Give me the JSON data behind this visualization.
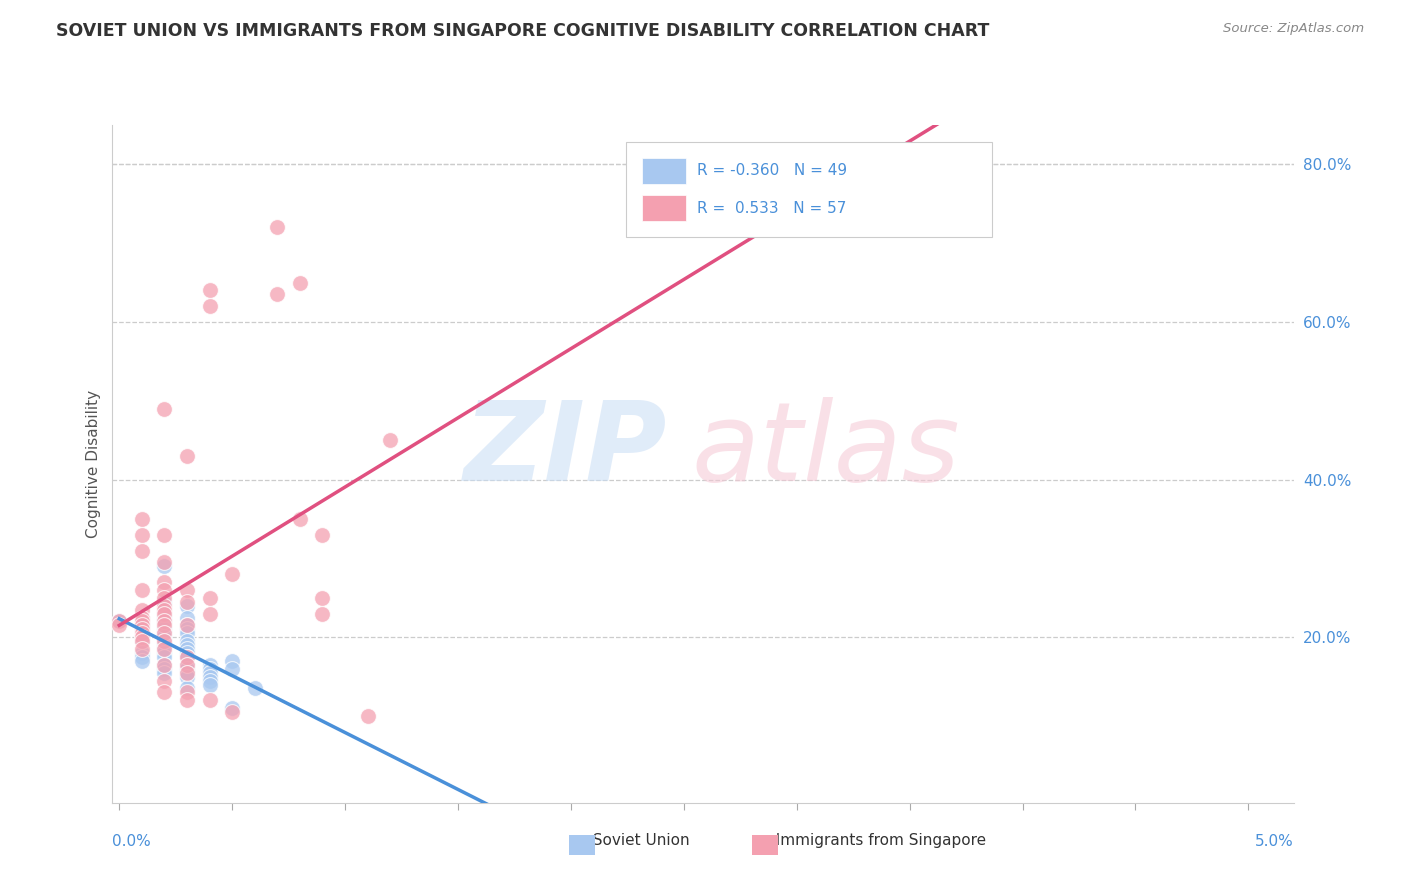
{
  "title": "SOVIET UNION VS IMMIGRANTS FROM SINGAPORE COGNITIVE DISABILITY CORRELATION CHART",
  "source": "Source: ZipAtlas.com",
  "ylabel": "Cognitive Disability",
  "ylabel_right_vals": [
    0.8,
    0.6,
    0.4,
    0.2
  ],
  "x_min": 0.0,
  "x_max": 0.05,
  "y_min": 0.0,
  "y_max": 0.85,
  "color_soviet": "#a8c8f0",
  "color_singapore": "#f4a0b0",
  "trendline_soviet_color": "#4a90d9",
  "trendline_singapore_color": "#e05080",
  "soviet_scatter": [
    [
      0.0,
      0.22
    ],
    [
      0.001,
      0.215
    ],
    [
      0.001,
      0.2
    ],
    [
      0.001,
      0.195
    ],
    [
      0.001,
      0.18
    ],
    [
      0.001,
      0.175
    ],
    [
      0.001,
      0.17
    ],
    [
      0.002,
      0.29
    ],
    [
      0.002,
      0.245
    ],
    [
      0.002,
      0.23
    ],
    [
      0.002,
      0.225
    ],
    [
      0.002,
      0.22
    ],
    [
      0.002,
      0.215
    ],
    [
      0.002,
      0.21
    ],
    [
      0.002,
      0.205
    ],
    [
      0.002,
      0.2
    ],
    [
      0.002,
      0.195
    ],
    [
      0.002,
      0.19
    ],
    [
      0.002,
      0.185
    ],
    [
      0.002,
      0.18
    ],
    [
      0.002,
      0.175
    ],
    [
      0.002,
      0.165
    ],
    [
      0.002,
      0.16
    ],
    [
      0.002,
      0.155
    ],
    [
      0.003,
      0.24
    ],
    [
      0.003,
      0.225
    ],
    [
      0.003,
      0.215
    ],
    [
      0.003,
      0.21
    ],
    [
      0.003,
      0.205
    ],
    [
      0.003,
      0.195
    ],
    [
      0.003,
      0.19
    ],
    [
      0.003,
      0.185
    ],
    [
      0.003,
      0.18
    ],
    [
      0.003,
      0.175
    ],
    [
      0.003,
      0.165
    ],
    [
      0.003,
      0.16
    ],
    [
      0.003,
      0.155
    ],
    [
      0.003,
      0.15
    ],
    [
      0.003,
      0.135
    ],
    [
      0.004,
      0.165
    ],
    [
      0.004,
      0.16
    ],
    [
      0.004,
      0.155
    ],
    [
      0.004,
      0.15
    ],
    [
      0.004,
      0.145
    ],
    [
      0.004,
      0.14
    ],
    [
      0.005,
      0.17
    ],
    [
      0.005,
      0.16
    ],
    [
      0.005,
      0.11
    ],
    [
      0.006,
      0.135
    ]
  ],
  "singapore_scatter": [
    [
      0.0,
      0.22
    ],
    [
      0.0,
      0.215
    ],
    [
      0.001,
      0.35
    ],
    [
      0.001,
      0.33
    ],
    [
      0.001,
      0.31
    ],
    [
      0.001,
      0.26
    ],
    [
      0.001,
      0.235
    ],
    [
      0.001,
      0.225
    ],
    [
      0.001,
      0.22
    ],
    [
      0.001,
      0.215
    ],
    [
      0.001,
      0.21
    ],
    [
      0.001,
      0.205
    ],
    [
      0.001,
      0.2
    ],
    [
      0.001,
      0.195
    ],
    [
      0.001,
      0.185
    ],
    [
      0.002,
      0.49
    ],
    [
      0.002,
      0.33
    ],
    [
      0.002,
      0.295
    ],
    [
      0.002,
      0.27
    ],
    [
      0.002,
      0.26
    ],
    [
      0.002,
      0.25
    ],
    [
      0.002,
      0.24
    ],
    [
      0.002,
      0.235
    ],
    [
      0.002,
      0.23
    ],
    [
      0.002,
      0.22
    ],
    [
      0.002,
      0.215
    ],
    [
      0.002,
      0.205
    ],
    [
      0.002,
      0.195
    ],
    [
      0.002,
      0.185
    ],
    [
      0.002,
      0.165
    ],
    [
      0.002,
      0.145
    ],
    [
      0.002,
      0.13
    ],
    [
      0.003,
      0.43
    ],
    [
      0.003,
      0.26
    ],
    [
      0.003,
      0.245
    ],
    [
      0.003,
      0.215
    ],
    [
      0.003,
      0.175
    ],
    [
      0.003,
      0.165
    ],
    [
      0.003,
      0.155
    ],
    [
      0.003,
      0.13
    ],
    [
      0.003,
      0.12
    ],
    [
      0.004,
      0.64
    ],
    [
      0.004,
      0.62
    ],
    [
      0.004,
      0.25
    ],
    [
      0.004,
      0.23
    ],
    [
      0.004,
      0.12
    ],
    [
      0.005,
      0.28
    ],
    [
      0.005,
      0.105
    ],
    [
      0.007,
      0.72
    ],
    [
      0.007,
      0.635
    ],
    [
      0.008,
      0.65
    ],
    [
      0.008,
      0.35
    ],
    [
      0.009,
      0.33
    ],
    [
      0.009,
      0.25
    ],
    [
      0.009,
      0.23
    ],
    [
      0.011,
      0.1
    ],
    [
      0.012,
      0.45
    ]
  ]
}
